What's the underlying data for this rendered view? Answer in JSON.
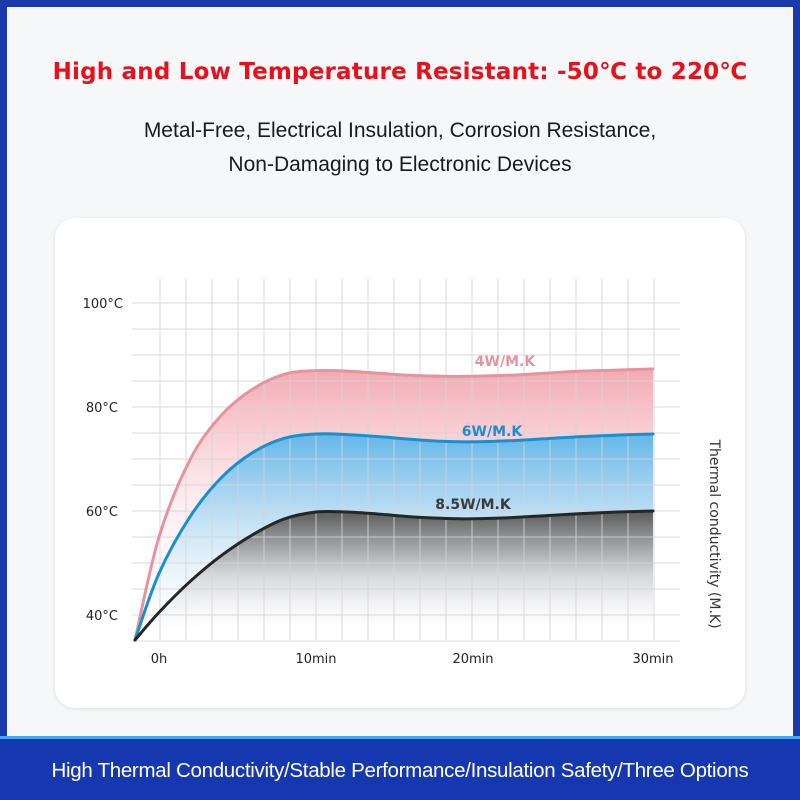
{
  "headline": "High and Low Temperature Resistant: -50℃ to 220℃",
  "subtitle_lines": [
    "Metal-Free, Electrical Insulation, Corrosion Resistance,",
    "Non-Damaging to Electronic Devices"
  ],
  "footer_banner": "High Thermal Conductivity/Stable Performance/Insulation Safety/Three Options",
  "colors": {
    "frame_blue": "#1a3aab",
    "headline_red": "#e8101a",
    "series_4w": "#e5949d",
    "series_6w": "#1a8fd0",
    "series_8_5w": "#262626",
    "banner_blue": "#1538b0",
    "banner_edge": "#45a6f2"
  },
  "chart_data": {
    "type": "area",
    "title": "",
    "xlabel": "",
    "ylabel": "",
    "right_axis_label": "Thermal conductivity (M.K)",
    "x_tick_labels": [
      "0h",
      "10min",
      "20min",
      "30min"
    ],
    "x_ticks_min": [
      0,
      10,
      20,
      30
    ],
    "y_tick_labels": [
      "100°C",
      "80°C",
      "60°C",
      "40°C"
    ],
    "y_ticks": [
      100,
      80,
      60,
      40
    ],
    "ylim": [
      35,
      100
    ],
    "xlim": [
      -1.5,
      30
    ],
    "grid": true,
    "x": [
      -1.5,
      0,
      2,
      4,
      6,
      8,
      10,
      12,
      14,
      16,
      18,
      20,
      22,
      24,
      26,
      28,
      30
    ],
    "series": [
      {
        "name": "4W/M.K",
        "label": "4W/M.K",
        "color": "#e5949d",
        "values": [
          35,
          55,
          70,
          78.5,
          83.5,
          86.3,
          87,
          86.9,
          86.5,
          86.1,
          85.9,
          85.9,
          86.1,
          86.5,
          86.9,
          87.1,
          87.3
        ]
      },
      {
        "name": "6W/M.K",
        "label": "6W/M.K",
        "color": "#1a8fd0",
        "values": [
          35,
          48,
          59,
          66.5,
          71.3,
          74,
          74.8,
          74.7,
          74.3,
          73.8,
          73.4,
          73.3,
          73.5,
          73.9,
          74.3,
          74.6,
          74.8
        ]
      },
      {
        "name": "8.5W/M.K",
        "label": "8.5W/M.K",
        "color": "#262626",
        "values": [
          35,
          40.5,
          46.5,
          51.5,
          55.5,
          58.5,
          59.8,
          59.8,
          59.4,
          58.9,
          58.6,
          58.5,
          58.7,
          59.1,
          59.5,
          59.8,
          60
        ]
      }
    ]
  }
}
